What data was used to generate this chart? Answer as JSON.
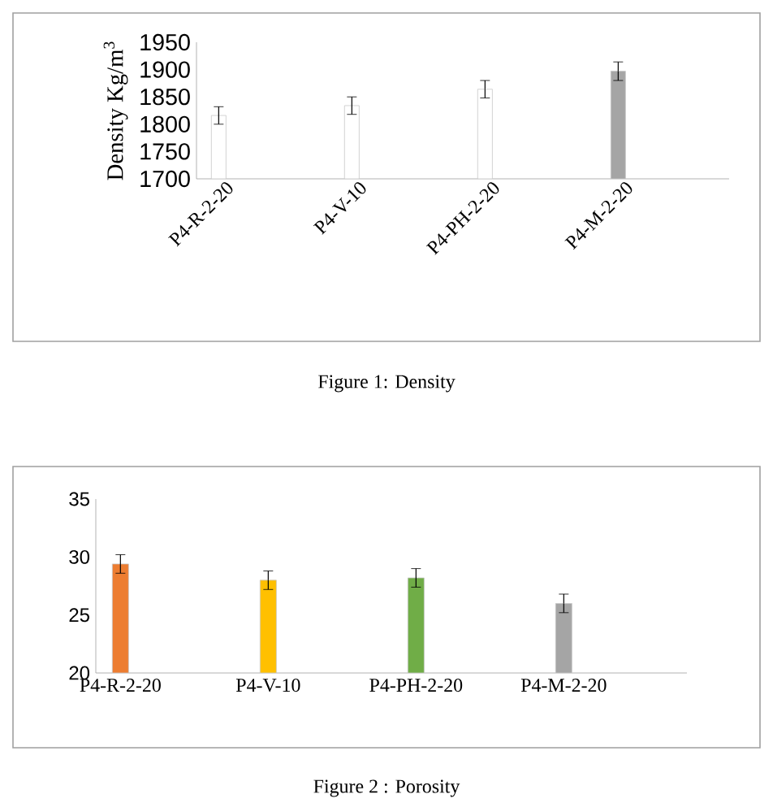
{
  "chart_data": [
    {
      "type": "bar",
      "ylabel": "Density Kg/m$^{3}$",
      "categories": [
        "P4-R-2-20",
        "P4-V-10",
        "P4-PH-2-20",
        "P4-M-2-20"
      ],
      "values": [
        1816,
        1834,
        1864,
        1897
      ],
      "errors": [
        16,
        16,
        16,
        17
      ],
      "colors": [
        "#ffffff",
        "#ffffff",
        "#ffffff",
        "#a5a5a5"
      ],
      "ylim": [
        1700,
        1950
      ],
      "yticks": [
        1700,
        1750,
        1800,
        1850,
        1900,
        1950
      ],
      "grid": false,
      "annotations": [
        "Figure 1: Density"
      ]
    },
    {
      "type": "bar",
      "categories": [
        "P4-R-2-20",
        "P4-V-10",
        "P4-PH-2-20",
        "P4-M-2-20"
      ],
      "values": [
        29.4,
        28.0,
        28.2,
        26.0
      ],
      "errors": [
        0.8,
        0.8,
        0.8,
        0.8
      ],
      "colors": [
        "#ed7d31",
        "#ffc000",
        "#70ad47",
        "#a5a5a5"
      ],
      "ylim": [
        20,
        35
      ],
      "yticks": [
        20,
        25,
        30,
        35
      ],
      "grid": false,
      "annotations": [
        "Figure 2 : Porosity"
      ]
    }
  ]
}
